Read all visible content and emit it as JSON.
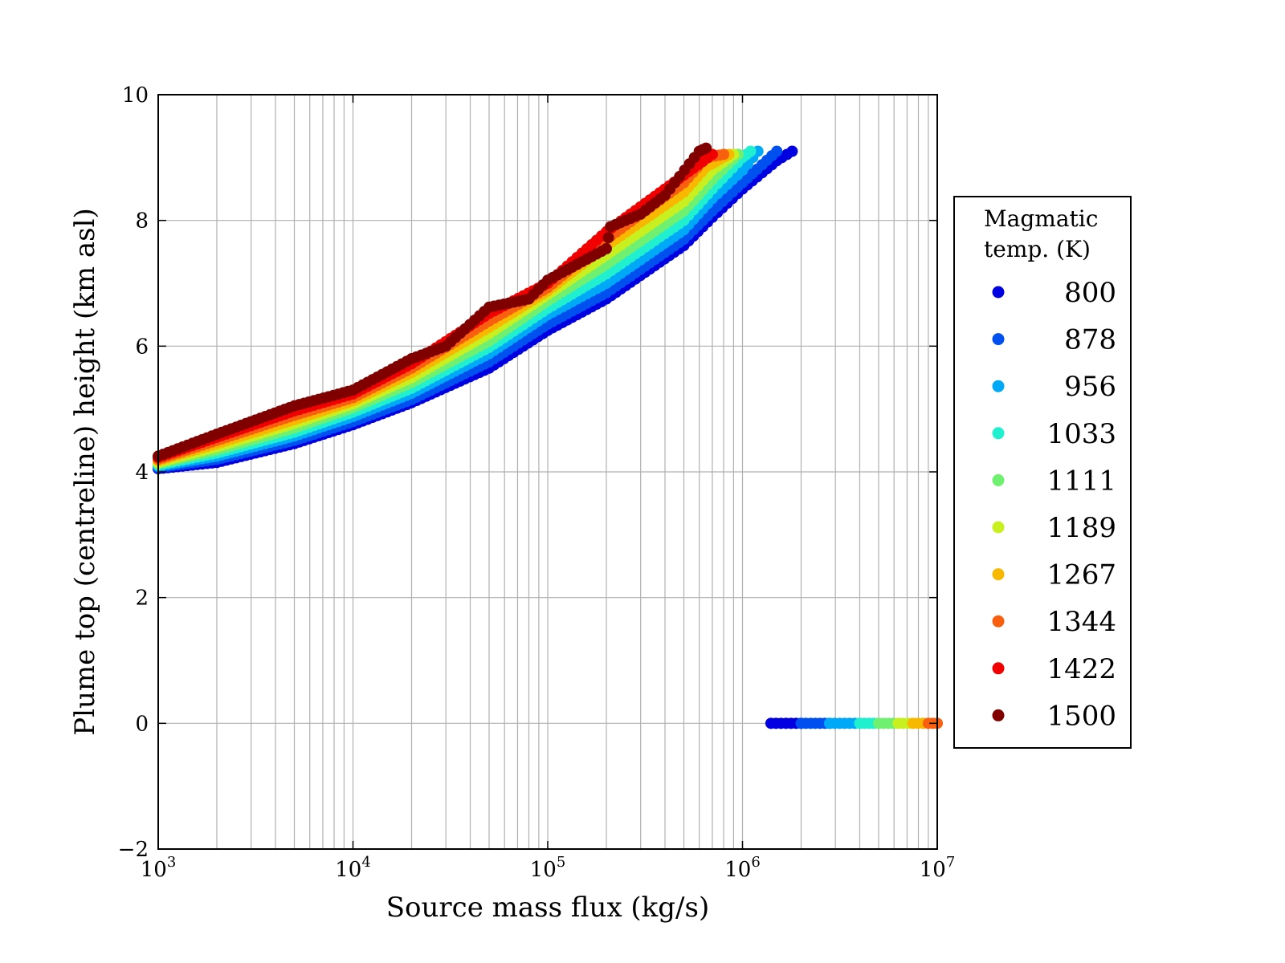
{
  "chart_data": {
    "type": "scatter",
    "title": "",
    "xlabel": "Source mass flux (kg/s)",
    "ylabel": "Plume top (centreline) height (km asl)",
    "xscale": "log",
    "xlim": [
      1000,
      10000000
    ],
    "ylim": [
      -2,
      10
    ],
    "grid": true,
    "x_ticks": [
      {
        "base": "10",
        "exp": "3"
      },
      {
        "base": "10",
        "exp": "4"
      },
      {
        "base": "10",
        "exp": "5"
      },
      {
        "base": "10",
        "exp": "6"
      },
      {
        "base": "10",
        "exp": "7"
      }
    ],
    "y_ticks": [
      "−2",
      "0",
      "2",
      "4",
      "6",
      "8",
      "10"
    ],
    "legend": {
      "title": [
        "Magmatic",
        "temp. (K)"
      ],
      "placement": "right, outside plot"
    },
    "series": [
      {
        "name": "800",
        "color": "#0000e0",
        "points": [
          [
            1000,
            4.05
          ],
          [
            2000,
            4.15
          ],
          [
            5000,
            4.45
          ],
          [
            10000,
            4.75
          ],
          [
            20000,
            5.1
          ],
          [
            50000,
            5.65
          ],
          [
            100000,
            6.25
          ],
          [
            200000,
            6.75
          ],
          [
            500000,
            7.6
          ],
          [
            700000,
            8.05
          ],
          [
            1000000,
            8.5
          ],
          [
            1500000,
            8.95
          ],
          [
            1800000,
            9.1
          ]
        ],
        "collapse_x": [
          1400000,
          2000000
        ]
      },
      {
        "name": "878",
        "color": "#0050f0",
        "points": [
          [
            1000,
            4.07
          ],
          [
            2000,
            4.2
          ],
          [
            5000,
            4.5
          ],
          [
            10000,
            4.8
          ],
          [
            20000,
            5.15
          ],
          [
            50000,
            5.75
          ],
          [
            100000,
            6.35
          ],
          [
            200000,
            6.85
          ],
          [
            500000,
            7.7
          ],
          [
            700000,
            8.15
          ],
          [
            1000000,
            8.6
          ],
          [
            1500000,
            9.1
          ]
        ],
        "collapse_x": [
          2000000,
          2800000
        ]
      },
      {
        "name": "956",
        "color": "#00a8f8",
        "points": [
          [
            1000,
            4.09
          ],
          [
            2000,
            4.25
          ],
          [
            5000,
            4.57
          ],
          [
            10000,
            4.88
          ],
          [
            20000,
            5.25
          ],
          [
            50000,
            5.88
          ],
          [
            100000,
            6.5
          ],
          [
            200000,
            7.0
          ],
          [
            500000,
            7.85
          ],
          [
            700000,
            8.35
          ],
          [
            1000000,
            8.8
          ],
          [
            1200000,
            9.1
          ]
        ],
        "collapse_x": [
          2800000,
          4000000
        ]
      },
      {
        "name": "1033",
        "color": "#20f0d0",
        "points": [
          [
            1000,
            4.11
          ],
          [
            2000,
            4.3
          ],
          [
            5000,
            4.63
          ],
          [
            10000,
            4.95
          ],
          [
            20000,
            5.33
          ],
          [
            50000,
            5.98
          ],
          [
            100000,
            6.6
          ],
          [
            200000,
            7.15
          ],
          [
            500000,
            8.0
          ],
          [
            700000,
            8.5
          ],
          [
            1000000,
            9.0
          ],
          [
            1100000,
            9.1
          ]
        ],
        "collapse_x": [
          4000000,
          5000000
        ]
      },
      {
        "name": "1111",
        "color": "#70f070",
        "points": [
          [
            1000,
            4.13
          ],
          [
            2000,
            4.35
          ],
          [
            5000,
            4.7
          ],
          [
            10000,
            5.02
          ],
          [
            20000,
            5.42
          ],
          [
            50000,
            6.08
          ],
          [
            100000,
            6.72
          ],
          [
            200000,
            7.3
          ],
          [
            500000,
            8.15
          ],
          [
            700000,
            8.65
          ],
          [
            950000,
            9.05
          ]
        ],
        "collapse_x": [
          5000000,
          6300000
        ]
      },
      {
        "name": "1189",
        "color": "#c8f020",
        "points": [
          [
            1000,
            4.15
          ],
          [
            2000,
            4.4
          ],
          [
            5000,
            4.77
          ],
          [
            10000,
            5.08
          ],
          [
            20000,
            5.5
          ],
          [
            50000,
            6.2
          ],
          [
            100000,
            6.82
          ],
          [
            200000,
            7.45
          ],
          [
            500000,
            8.3
          ],
          [
            700000,
            8.8
          ],
          [
            900000,
            9.05
          ]
        ],
        "collapse_x": [
          6300000,
          7500000
        ]
      },
      {
        "name": "1267",
        "color": "#f8b800",
        "points": [
          [
            1000,
            4.18
          ],
          [
            2000,
            4.45
          ],
          [
            5000,
            4.83
          ],
          [
            10000,
            5.13
          ],
          [
            20000,
            5.58
          ],
          [
            50000,
            6.3
          ],
          [
            100000,
            6.88
          ],
          [
            200000,
            7.6
          ],
          [
            500000,
            8.45
          ],
          [
            650000,
            8.85
          ],
          [
            850000,
            9.05
          ]
        ],
        "collapse_x": [
          7500000,
          9000000
        ]
      },
      {
        "name": "1344",
        "color": "#f86010",
        "points": [
          [
            1000,
            4.2
          ],
          [
            2000,
            4.5
          ],
          [
            5000,
            4.9
          ],
          [
            10000,
            5.18
          ],
          [
            20000,
            5.65
          ],
          [
            50000,
            6.4
          ],
          [
            100000,
            6.93
          ],
          [
            200000,
            7.7
          ],
          [
            500000,
            8.6
          ],
          [
            650000,
            9.0
          ],
          [
            800000,
            9.05
          ]
        ],
        "collapse_x": [
          9000000,
          10000000
        ]
      },
      {
        "name": "1422",
        "color": "#f00000",
        "points": [
          [
            1000,
            4.23
          ],
          [
            2000,
            4.55
          ],
          [
            5000,
            4.97
          ],
          [
            10000,
            5.24
          ],
          [
            20000,
            5.72
          ],
          [
            50000,
            6.52
          ],
          [
            100000,
            7.0
          ],
          [
            200000,
            7.82
          ],
          [
            500000,
            8.72
          ],
          [
            700000,
            9.05
          ]
        ],
        "collapse_x": []
      },
      {
        "name": "1500",
        "color": "#800000",
        "points": [
          [
            1000,
            4.25
          ],
          [
            2000,
            4.6
          ],
          [
            5000,
            5.05
          ],
          [
            10000,
            5.3
          ],
          [
            20000,
            5.8
          ],
          [
            30000,
            6.0
          ],
          [
            50000,
            6.62
          ],
          [
            80000,
            6.75
          ],
          [
            100000,
            7.05
          ],
          [
            200000,
            7.55
          ],
          [
            210000,
            7.9
          ],
          [
            300000,
            8.1
          ],
          [
            400000,
            8.4
          ],
          [
            600000,
            9.1
          ],
          [
            650000,
            9.15
          ]
        ],
        "collapse_x": []
      }
    ]
  }
}
